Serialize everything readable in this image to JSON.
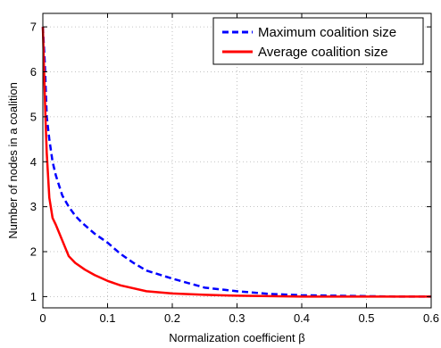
{
  "chart_data": {
    "type": "line",
    "title": "",
    "xlabel": "Normalization coefficient β",
    "ylabel": "Number of nodes in a coalition",
    "xlim": [
      0,
      0.6
    ],
    "ylim": [
      0.75,
      7.3
    ],
    "x_ticks": [
      0,
      0.1,
      0.2,
      0.3,
      0.4,
      0.5,
      0.6
    ],
    "x_tick_labels": [
      "0",
      "0.1",
      "0.2",
      "0.3",
      "0.4",
      "0.5",
      "0.6"
    ],
    "y_ticks": [
      1,
      2,
      3,
      4,
      5,
      6,
      7
    ],
    "y_tick_labels": [
      "1",
      "2",
      "3",
      "4",
      "5",
      "6",
      "7"
    ],
    "grid": true,
    "legend_position": "top-right",
    "series": [
      {
        "name": "Maximum coalition size",
        "color": "#0000ff",
        "style": "dashed",
        "x": [
          0,
          0.003,
          0.006,
          0.01,
          0.015,
          0.02,
          0.03,
          0.04,
          0.05,
          0.06,
          0.08,
          0.1,
          0.12,
          0.14,
          0.16,
          0.2,
          0.25,
          0.3,
          0.35,
          0.4,
          0.45,
          0.5,
          0.55,
          0.6
        ],
        "y": [
          7.0,
          6.2,
          5.0,
          4.5,
          4.0,
          3.7,
          3.25,
          3.0,
          2.8,
          2.65,
          2.4,
          2.2,
          1.95,
          1.75,
          1.58,
          1.4,
          1.2,
          1.12,
          1.06,
          1.03,
          1.02,
          1.01,
          1.0,
          1.0
        ]
      },
      {
        "name": "Average coalition size",
        "color": "#ff0000",
        "style": "solid",
        "x": [
          0,
          0.002,
          0.004,
          0.006,
          0.01,
          0.015,
          0.02,
          0.03,
          0.04,
          0.05,
          0.065,
          0.08,
          0.1,
          0.12,
          0.16,
          0.2,
          0.25,
          0.3,
          0.4,
          0.5,
          0.6
        ],
        "y": [
          7.0,
          6.0,
          5.0,
          4.2,
          3.2,
          2.75,
          2.6,
          2.25,
          1.9,
          1.75,
          1.6,
          1.48,
          1.35,
          1.25,
          1.12,
          1.07,
          1.04,
          1.02,
          1.0,
          1.0,
          1.0
        ]
      }
    ]
  },
  "colors": {
    "grid": "#b0b0b0",
    "axis": "#000000"
  }
}
